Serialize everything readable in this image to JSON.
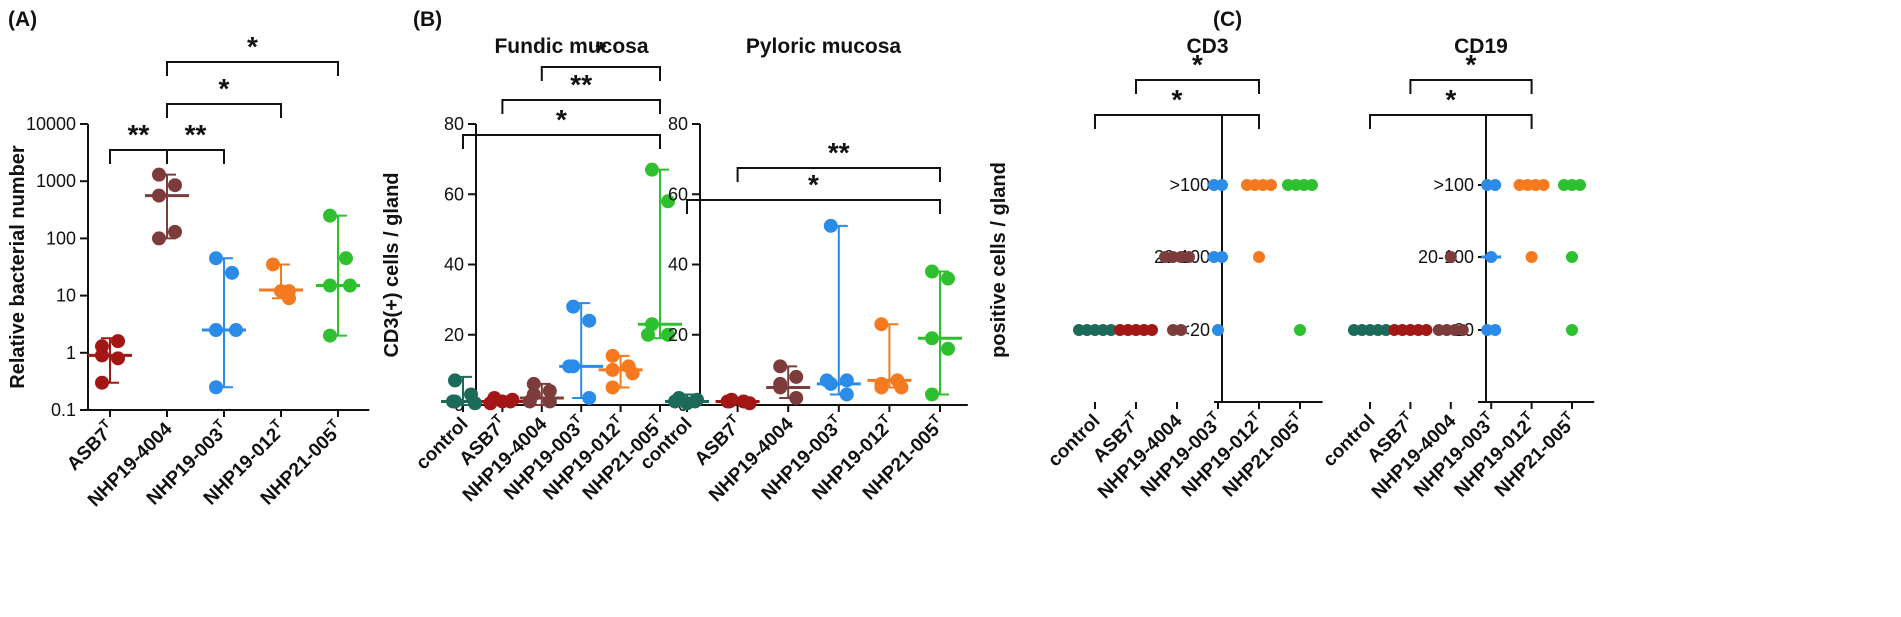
{
  "panel_labels": [
    "(A)",
    "(B)",
    "(C)"
  ],
  "colors": {
    "control": "#1c6b5a",
    "ASB7T": "#a31616",
    "NHP19-4004": "#7d3c3c",
    "NHP19-003T": "#2a8be8",
    "NHP19-012T": "#f57a1f",
    "NHP21-005T": "#2ec02e"
  },
  "chart_data": [
    {
      "id": "A",
      "type": "scatter",
      "title": "",
      "xlabel": "",
      "ylabel": "Relative bacterial number",
      "yscale": "log",
      "ylim": [
        0.1,
        10000
      ],
      "yticks": [
        "0.1",
        "1",
        "10",
        "100",
        "1000",
        "10000"
      ],
      "categories": [
        {
          "label": "ASB7",
          "sup": "T",
          "key": "ASB7T"
        },
        {
          "label": "NHP19-4004",
          "sup": "",
          "key": "NHP19-4004"
        },
        {
          "label": "NHP19-003",
          "sup": "T",
          "key": "NHP19-003T"
        },
        {
          "label": "NHP19-012",
          "sup": "T",
          "key": "NHP19-012T"
        },
        {
          "label": "NHP21-005",
          "sup": "T",
          "key": "NHP21-005T"
        }
      ],
      "points": [
        [
          1.3,
          0.8,
          0.3,
          1.6,
          0.9
        ],
        [
          1300,
          850,
          560,
          130,
          100
        ],
        [
          45,
          25,
          2.5,
          2.5,
          0.25
        ],
        [
          35,
          12,
          12,
          9
        ],
        [
          250,
          45,
          15,
          15,
          2
        ]
      ],
      "summary": [
        {
          "median": 0.9,
          "low": 0.3,
          "high": 1.8
        },
        {
          "median": 560,
          "low": 100,
          "high": 1300
        },
        {
          "median": 2.5,
          "low": 0.25,
          "high": 45
        },
        {
          "median": 12.5,
          "low": 9,
          "high": 35
        },
        {
          "median": 15,
          "low": 2,
          "high": 250
        }
      ],
      "significance": [
        {
          "from": 0,
          "to": 1,
          "label": "**"
        },
        {
          "from": 1,
          "to": 2,
          "label": "**"
        },
        {
          "from": 1,
          "to": 3,
          "label": "*"
        },
        {
          "from": 1,
          "to": 4,
          "label": "*"
        }
      ]
    },
    {
      "id": "B1",
      "type": "scatter",
      "title": "Fundic mucosa",
      "xlabel": "",
      "ylabel": "CD3(+) cells / gland",
      "ylim": [
        0,
        80
      ],
      "yticks": [
        "0",
        "20",
        "40",
        "60",
        "80"
      ],
      "categories": [
        {
          "label": "control",
          "sup": "",
          "key": "control"
        },
        {
          "label": "ASB7",
          "sup": "T",
          "key": "ASB7T"
        },
        {
          "label": "NHP19-4004",
          "sup": "",
          "key": "NHP19-4004"
        },
        {
          "label": "NHP19-003",
          "sup": "T",
          "key": "NHP19-003T"
        },
        {
          "label": "NHP19-012",
          "sup": "T",
          "key": "NHP19-012T"
        },
        {
          "label": "NHP21-005",
          "sup": "T",
          "key": "NHP21-005T"
        }
      ],
      "points": [
        [
          7,
          3,
          1,
          0.5,
          1
        ],
        [
          2,
          1,
          1,
          0.5,
          1.5
        ],
        [
          6,
          4,
          3,
          1,
          1
        ],
        [
          28,
          24,
          11,
          2,
          11
        ],
        [
          14,
          11,
          10,
          9,
          5
        ],
        [
          67,
          58,
          23,
          20,
          20
        ]
      ],
      "summary": [
        {
          "median": 1,
          "low": 0,
          "high": 8
        },
        {
          "median": 1,
          "low": 0.5,
          "high": 2
        },
        {
          "median": 2,
          "low": 0,
          "high": 6
        },
        {
          "median": 11,
          "low": 2,
          "high": 29
        },
        {
          "median": 10,
          "low": 5,
          "high": 14
        },
        {
          "median": 23,
          "low": 19,
          "high": 67
        }
      ],
      "significance": [
        {
          "from": 0,
          "to": 5,
          "label": "*"
        },
        {
          "from": 1,
          "to": 5,
          "label": "**"
        },
        {
          "from": 2,
          "to": 5,
          "label": "*"
        }
      ]
    },
    {
      "id": "B2",
      "type": "scatter",
      "title": "Pyloric mucosa",
      "xlabel": "",
      "ylabel": "",
      "ylim": [
        0,
        80
      ],
      "yticks": [
        "0",
        "20",
        "40",
        "60",
        "80"
      ],
      "categories": [
        {
          "label": "control",
          "sup": "",
          "key": "control"
        },
        {
          "label": "ASB7",
          "sup": "T",
          "key": "ASB7T"
        },
        {
          "label": "NHP19-4004",
          "sup": "",
          "key": "NHP19-4004"
        },
        {
          "label": "NHP19-003",
          "sup": "T",
          "key": "NHP19-003T"
        },
        {
          "label": "NHP19-012",
          "sup": "T",
          "key": "NHP19-012T"
        },
        {
          "label": "NHP21-005",
          "sup": "T",
          "key": "NHP21-005T"
        }
      ],
      "points": [
        [
          2,
          1,
          0.5,
          1,
          1.5
        ],
        [
          1,
          1,
          0.5,
          1,
          1.5
        ],
        [
          11,
          8,
          5,
          2,
          6
        ],
        [
          51,
          7,
          6,
          3,
          7
        ],
        [
          23,
          7,
          5,
          5,
          6
        ],
        [
          38,
          36,
          19,
          16,
          3
        ]
      ],
      "summary": [
        {
          "median": 1,
          "low": 0,
          "high": 3
        },
        {
          "median": 1,
          "low": 0.5,
          "high": 1.5
        },
        {
          "median": 5,
          "low": 2,
          "high": 11
        },
        {
          "median": 6,
          "low": 3,
          "high": 51
        },
        {
          "median": 7,
          "low": 5,
          "high": 23
        },
        {
          "median": 19,
          "low": 3,
          "high": 38
        }
      ],
      "significance": [
        {
          "from": 0,
          "to": 5,
          "label": "*"
        },
        {
          "from": 1,
          "to": 5,
          "label": "**"
        }
      ]
    },
    {
      "id": "C1",
      "type": "scatter",
      "title": "CD3",
      "xlabel": "",
      "ylabel": "positive cells / gland",
      "yscale": "ordinal",
      "yticks": [
        "<20",
        "20-100",
        ">100"
      ],
      "categories": [
        {
          "label": "control",
          "sup": "",
          "key": "control"
        },
        {
          "label": "ASB7",
          "sup": "T",
          "key": "ASB7T"
        },
        {
          "label": "NHP19-4004",
          "sup": "",
          "key": "NHP19-4004"
        },
        {
          "label": "NHP19-003",
          "sup": "T",
          "key": "NHP19-003T"
        },
        {
          "label": "NHP19-012",
          "sup": "T",
          "key": "NHP19-012T"
        },
        {
          "label": "NHP21-005",
          "sup": "T",
          "key": "NHP21-005T"
        }
      ],
      "points": [
        [
          0,
          0,
          0,
          0,
          0
        ],
        [
          0,
          0,
          0,
          0,
          0
        ],
        [
          1,
          1,
          1,
          1,
          0,
          0
        ],
        [
          2,
          2,
          1,
          1,
          0
        ],
        [
          2,
          2,
          2,
          2,
          1
        ],
        [
          2,
          2,
          2,
          2,
          0
        ]
      ],
      "summary": [
        {
          "median": 0
        },
        {
          "median": 0
        },
        null,
        {
          "median": 1
        },
        null,
        null
      ],
      "significance": [
        {
          "from": 0,
          "to": 4,
          "label": "*"
        },
        {
          "from": 1,
          "to": 4,
          "label": "*"
        }
      ]
    },
    {
      "id": "C2",
      "type": "scatter",
      "title": "CD19",
      "xlabel": "",
      "ylabel": "",
      "yscale": "ordinal",
      "yticks": [
        "<20",
        "20-100",
        ">100"
      ],
      "categories": [
        {
          "label": "control",
          "sup": "",
          "key": "control"
        },
        {
          "label": "ASB7",
          "sup": "T",
          "key": "ASB7T"
        },
        {
          "label": "NHP19-4004",
          "sup": "",
          "key": "NHP19-4004"
        },
        {
          "label": "NHP19-003",
          "sup": "T",
          "key": "NHP19-003T"
        },
        {
          "label": "NHP19-012",
          "sup": "T",
          "key": "NHP19-012T"
        },
        {
          "label": "NHP21-005",
          "sup": "T",
          "key": "NHP21-005T"
        }
      ],
      "points": [
        [
          0,
          0,
          0,
          0,
          0
        ],
        [
          0,
          0,
          0,
          0,
          0
        ],
        [
          1,
          0,
          0,
          0,
          0
        ],
        [
          2,
          2,
          1,
          0,
          0
        ],
        [
          2,
          2,
          2,
          2,
          1
        ],
        [
          2,
          2,
          2,
          1,
          0
        ]
      ],
      "summary": [
        {
          "median": 0
        },
        {
          "median": 0
        },
        {
          "median": 0
        },
        {
          "median": 1
        },
        null,
        null
      ],
      "significance": [
        {
          "from": 0,
          "to": 4,
          "label": "*"
        },
        {
          "from": 1,
          "to": 4,
          "label": "*"
        }
      ]
    }
  ]
}
